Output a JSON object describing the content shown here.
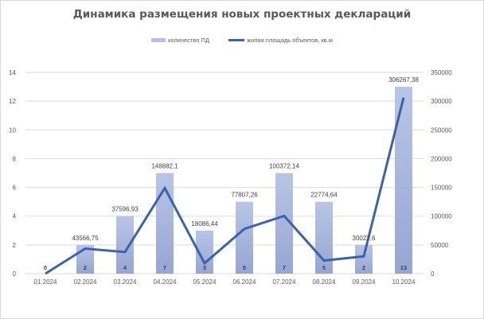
{
  "chart_data": {
    "type": "bar",
    "title": "Динамика размещения новых проектных деклараций",
    "xlabel": "",
    "ylabel": "",
    "y2label": "",
    "categories": [
      "01.2024",
      "02.2024",
      "03.2024",
      "04.2024",
      "05.2024",
      "06.2024",
      "07.2024",
      "08.2024",
      "09.2024",
      "10.2024"
    ],
    "series": [
      {
        "name": "количество ПД",
        "type": "bar",
        "axis": "left",
        "color": "#b4c1e3",
        "values": [
          0,
          2,
          4,
          7,
          3,
          5,
          7,
          5,
          2,
          13
        ],
        "labels": [
          "0",
          "2",
          "4",
          "7",
          "3",
          "5",
          "7",
          "5",
          "2",
          "13"
        ]
      },
      {
        "name": "жилая площадь объектов, кв.м",
        "type": "line",
        "axis": "right",
        "color": "#3a62ad",
        "values": [
          0,
          43566.75,
          37596.93,
          148882.1,
          18086.44,
          77807.26,
          100372.14,
          22774.64,
          30027.6,
          306267.38
        ],
        "labels": [
          "",
          "43566,75",
          "37596,93",
          "148882,1",
          "18086,44",
          "77807,26",
          "100372,14",
          "22774,64",
          "30027,6",
          "306267,38"
        ]
      }
    ],
    "ylim": [
      0,
      14
    ],
    "y_ticks": [
      "0",
      "2",
      "4",
      "6",
      "8",
      "10",
      "12",
      "14"
    ],
    "y2lim": [
      0,
      350000
    ],
    "y2_ticks": [
      "0",
      "50000",
      "100000",
      "150000",
      "200000",
      "250000",
      "300000",
      "350000"
    ],
    "grid": true,
    "legend_position": "top"
  }
}
